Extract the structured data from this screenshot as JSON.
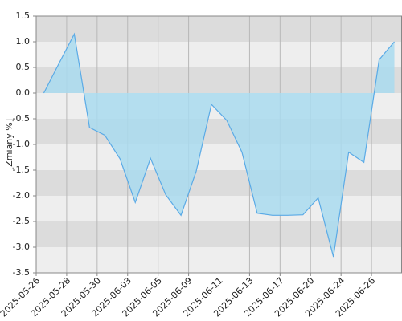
{
  "chart_data": {
    "type": "area",
    "y_label": "[Zmiany %]",
    "categories": [
      "2025-05-26",
      null,
      "2025-05-28",
      null,
      "2025-05-30",
      null,
      "2025-06-03",
      null,
      "2025-06-05",
      null,
      "2025-06-09",
      null,
      "2025-06-11",
      null,
      "2025-06-13",
      null,
      "2025-06-17",
      null,
      "2025-06-20",
      null,
      "2025-06-24",
      null,
      "2025-06-26",
      null
    ],
    "values": [
      0.0,
      0.58,
      1.15,
      -0.67,
      -0.82,
      -1.28,
      -2.13,
      -1.27,
      -1.98,
      -2.38,
      -1.52,
      -0.22,
      -0.53,
      -1.15,
      -2.34,
      -2.38,
      -2.38,
      -2.37,
      -2.04,
      -3.19,
      -1.15,
      -1.35,
      0.65,
      1.0
    ],
    "color": "#5aaae6",
    "fill": "#a9dbef",
    "ylim": [
      -3.5,
      1.5
    ],
    "yticks": [
      -3.5,
      {
        "value": -3,
        "label": "-3.0"
      },
      -2.5,
      {
        "value": -2,
        "label": "-2.0"
      },
      -1.5,
      {
        "value": -1,
        "label": "-1.0"
      },
      -0.5,
      {
        "value": 0,
        "label": "0.0"
      },
      0.5,
      {
        "value": 1,
        "label": "1.0"
      },
      1.5
    ],
    "grid": true
  }
}
